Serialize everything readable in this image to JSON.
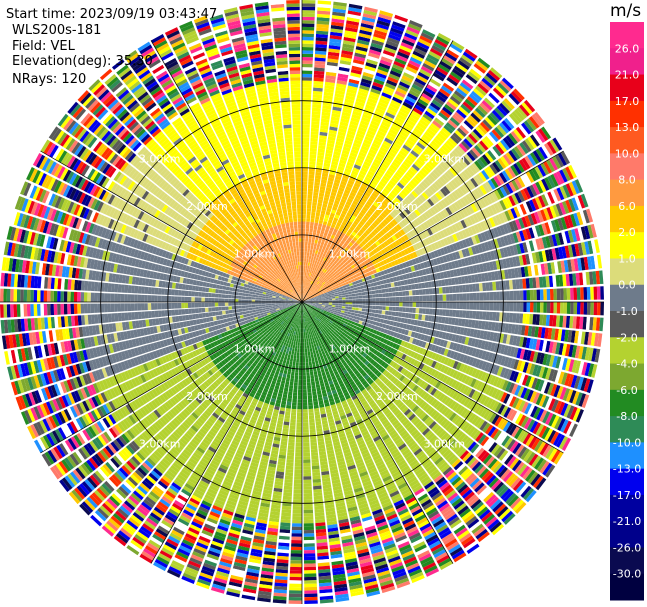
{
  "header": {
    "start_time": "Start time: 2023/09/19 03:43:47",
    "instrument": "WLS200s-181",
    "field": "Field: VEL",
    "elevation": "Elevation(deg): 35.30",
    "nrays": "NRays: 120"
  },
  "colorbar": {
    "unit": "m/s",
    "ticks": [
      "26.0",
      "21.0",
      "17.0",
      "13.0",
      "10.0",
      "8.0",
      "6.0",
      "2.0",
      "1.0",
      "0.0",
      "-1.0",
      "-2.0",
      "-4.0",
      "-6.0",
      "-8.0",
      "-10.0",
      "-13.0",
      "-17.0",
      "-21.0",
      "-26.0",
      "-30.0"
    ],
    "colors": [
      "#ff2a8f",
      "#f0208c",
      "#e8001a",
      "#ff3000",
      "#ff5a20",
      "#ff7a6a",
      "#ff9a40",
      "#ffc800",
      "#ffff00",
      "#dcdc7a",
      "#6e7b8b",
      "#5a5a5a",
      "#b4d230",
      "#7da830",
      "#228b22",
      "#2e8b57",
      "#1e90ff",
      "#0000ee",
      "#0000a0",
      "#00008b",
      "#0a0a50",
      "#000040"
    ]
  },
  "chart_data": {
    "type": "heatmap",
    "projection": "polar-ppi",
    "field": "VEL",
    "units": "m/s",
    "vmin": -30.0,
    "vmax": 26.0,
    "nrays": 120,
    "elevation_deg": 35.3,
    "range_ring_labels": [
      "1.00km",
      "2.00km",
      "3.00km"
    ],
    "range_rings_km": [
      1.0,
      2.0,
      3.0
    ],
    "max_range_km": 4.5,
    "valid_range_km": 3.3,
    "regions": [
      {
        "sector": "north",
        "range_km": [
          0.0,
          1.2
        ],
        "velocity": 8.0
      },
      {
        "sector": "north",
        "range_km": [
          1.2,
          2.0
        ],
        "velocity": 6.0
      },
      {
        "sector": "north",
        "range_km": [
          2.0,
          3.3
        ],
        "velocity": 2.0
      },
      {
        "sector": "south",
        "range_km": [
          0.0,
          1.6
        ],
        "velocity": -6.0
      },
      {
        "sector": "south",
        "range_km": [
          1.6,
          3.3
        ],
        "velocity": -2.0
      },
      {
        "sector": "east-west",
        "range_km": [
          0.0,
          3.3
        ],
        "velocity": 0.0
      }
    ]
  }
}
